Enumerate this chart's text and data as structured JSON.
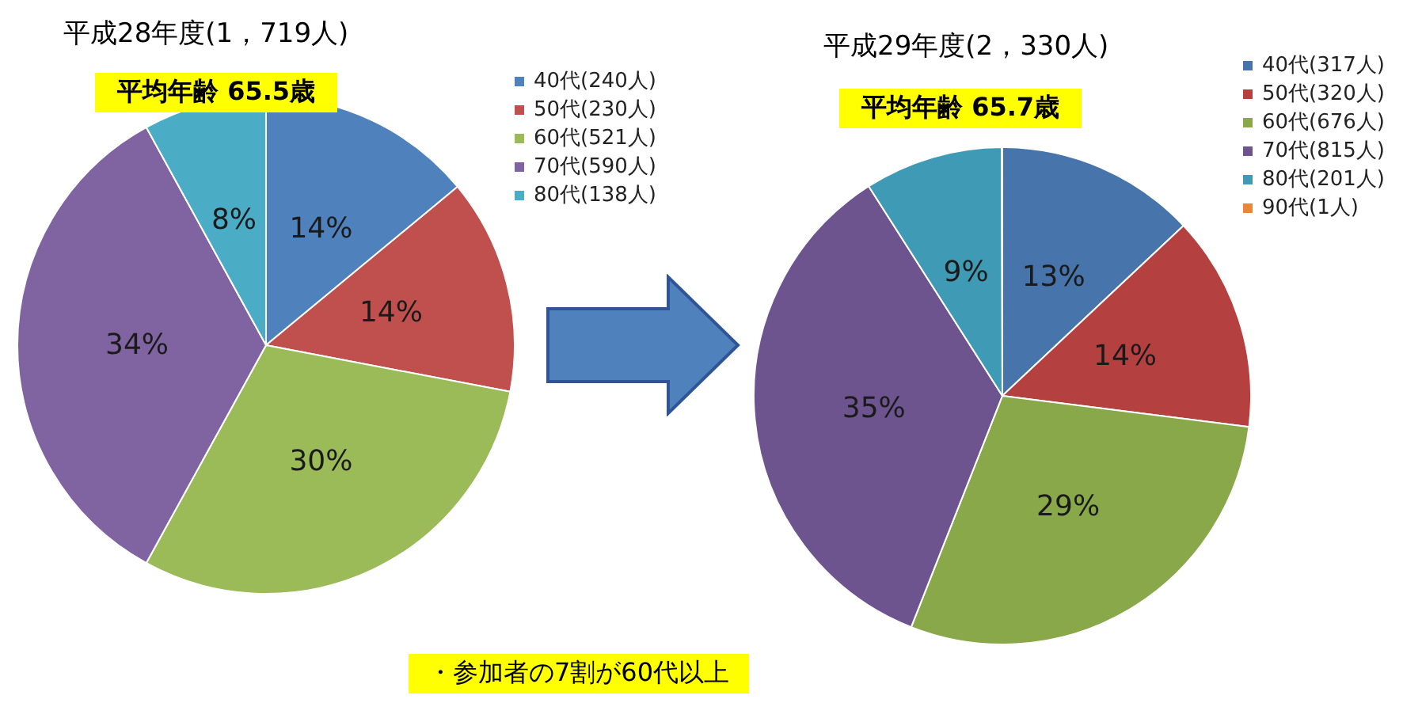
{
  "chart_data": [
    {
      "type": "pie",
      "title": "平成28年度(1，719人)",
      "subtitle": "平均年齢 65.5歳",
      "categories": [
        "40代(240人)",
        "50代(230人)",
        "60代(521人)",
        "70代(590人)",
        "80代(138人)"
      ],
      "values": [
        14,
        14,
        30,
        34,
        8
      ],
      "value_labels": [
        "14%",
        "14%",
        "30%",
        "34%",
        "8%"
      ],
      "colors": [
        "#4f81bd",
        "#c0504d",
        "#9bbb59",
        "#8064a2",
        "#4bacc6"
      ],
      "legend": "top right",
      "annotations": [
        "・参加者の7割が60代以上"
      ]
    },
    {
      "type": "pie",
      "title": "平成29年度(2，330人)",
      "subtitle": "平均年齢 65.7歳",
      "categories": [
        "40代(317人)",
        "50代(320人)",
        "60代(676人)",
        "70代(815人)",
        "80代(201人)",
        "90代(1人)"
      ],
      "values": [
        13,
        14,
        29,
        35,
        9,
        0.04
      ],
      "value_labels": [
        "13%",
        "14%",
        "29%",
        "35%",
        "9%",
        null
      ],
      "colors": [
        "#4674ab",
        "#b4413f",
        "#89a84a",
        "#6e548f",
        "#3f9bb5",
        "#e8873a"
      ],
      "legend": "top right"
    }
  ]
}
